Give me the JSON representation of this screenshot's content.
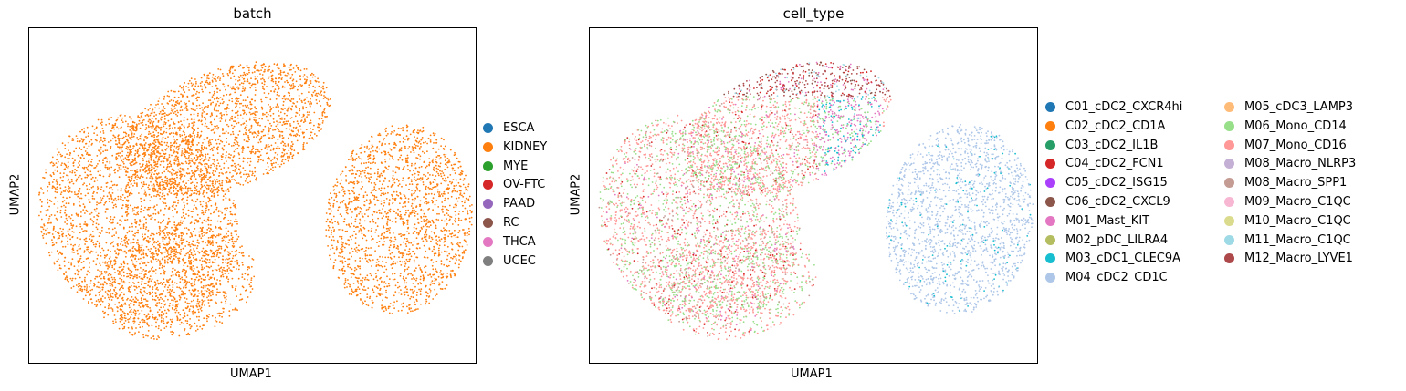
{
  "chart_data": [
    {
      "type": "scatter",
      "title": "batch",
      "xlabel": "UMAP1",
      "ylabel": "UMAP2",
      "grid": false,
      "ticks": false,
      "legend_placement": "right",
      "legend": [
        {
          "name": "ESCA",
          "color": "#1f77b4"
        },
        {
          "name": "KIDNEY",
          "color": "#ff7f0e"
        },
        {
          "name": "MYE",
          "color": "#2ca02c"
        },
        {
          "name": "OV-FTC",
          "color": "#d62728"
        },
        {
          "name": "PAAD",
          "color": "#9467bd"
        },
        {
          "name": "RC",
          "color": "#8c564b"
        },
        {
          "name": "THCA",
          "color": "#e377c2"
        },
        {
          "name": "UCEC",
          "color": "#7f7f7f"
        }
      ],
      "points_color_by": "KIDNEY"
    },
    {
      "type": "scatter",
      "title": "cell_type",
      "xlabel": "UMAP1",
      "ylabel": "UMAP2",
      "grid": false,
      "ticks": false,
      "legend_placement": "right",
      "legend_columns": 2,
      "legend": [
        {
          "name": "C01_cDC2_CXCR4hi",
          "color": "#1f77b4"
        },
        {
          "name": "C02_cDC2_CD1A",
          "color": "#ff7f0e"
        },
        {
          "name": "C03_cDC2_IL1B",
          "color": "#279e68"
        },
        {
          "name": "C04_cDC2_FCN1",
          "color": "#d62728"
        },
        {
          "name": "C05_cDC2_ISG15",
          "color": "#aa40fc"
        },
        {
          "name": "C06_cDC2_CXCL9",
          "color": "#8c564b"
        },
        {
          "name": "M01_Mast_KIT",
          "color": "#e377c2"
        },
        {
          "name": "M02_pDC_LILRA4",
          "color": "#b5bd61"
        },
        {
          "name": "M03_cDC1_CLEC9A",
          "color": "#17becf"
        },
        {
          "name": "M04_cDC2_CD1C",
          "color": "#aec7e8"
        },
        {
          "name": "M05_cDC3_LAMP3",
          "color": "#ffbb78"
        },
        {
          "name": "M06_Mono_CD14",
          "color": "#98df8a"
        },
        {
          "name": "M07_Mono_CD16",
          "color": "#ff9896"
        },
        {
          "name": "M08_Macro_NLRP3",
          "color": "#c5b0d5"
        },
        {
          "name": "M08_Macro_SPP1",
          "color": "#c49c94"
        },
        {
          "name": "M09_Macro_C1QC",
          "color": "#f7b6d2"
        },
        {
          "name": "M10_Macro_C1QC",
          "color": "#dbdb8d"
        },
        {
          "name": "M11_Macro_C1QC",
          "color": "#9edae5"
        },
        {
          "name": "M12_Macro_LYVE1",
          "color": "#ad494a"
        }
      ]
    }
  ]
}
